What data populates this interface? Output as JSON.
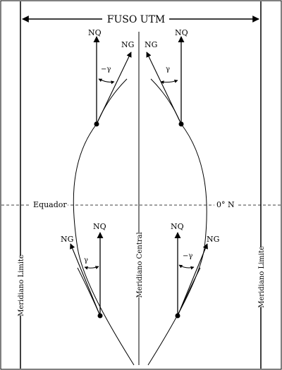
{
  "title": "FUSO UTM",
  "equator_label": "Equador",
  "latitude_label": "0° N",
  "central_meridian_label": "Meridiano Central",
  "limit_meridian_left_label": "Meridiano Limite",
  "limit_meridian_right_label": "Meridiano Limite",
  "quadrants": {
    "north_left": {
      "nq": "NQ",
      "ng": "NG",
      "gamma": "−γ"
    },
    "north_right": {
      "nq": "NQ",
      "ng": "NG",
      "gamma": "γ"
    },
    "south_left": {
      "nq": "NQ",
      "ng": "NG",
      "gamma": "γ"
    },
    "south_right": {
      "nq": "NQ",
      "ng": "NG",
      "gamma": "−γ"
    }
  }
}
